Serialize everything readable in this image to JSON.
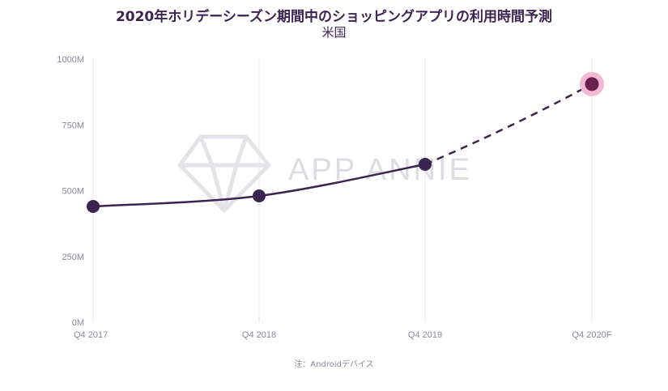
{
  "title": "2020年ホリデーシーズン期間中のショッピングアプリの利用時間予測",
  "subtitle": "米国",
  "note": "注：Androidデバイス",
  "watermark": "APP ANNIE",
  "colors": {
    "line": "#3b2550",
    "point": "#3b2550",
    "highlight_halo": "#f3b8d2",
    "highlight_point": "#6b1f4e",
    "grid": "#e6e6ea",
    "tick": "#8a8799"
  },
  "chart_data": {
    "type": "line",
    "title": "2020年ホリデーシーズン期間中のショッピングアプリの利用時間予測",
    "subtitle": "米国",
    "categories": [
      "Q4 2017",
      "Q4 2018",
      "Q4 2019",
      "Q4 2020F"
    ],
    "series": [
      {
        "values": [
          440,
          480,
          600,
          905
        ],
        "forecast_from_index": 2
      }
    ],
    "y_ticks": [
      "0M",
      "250M",
      "500M",
      "750M",
      "1000M"
    ],
    "ylim": [
      0,
      1000
    ],
    "grid": "vertical",
    "xlabel": "",
    "ylabel": ""
  }
}
